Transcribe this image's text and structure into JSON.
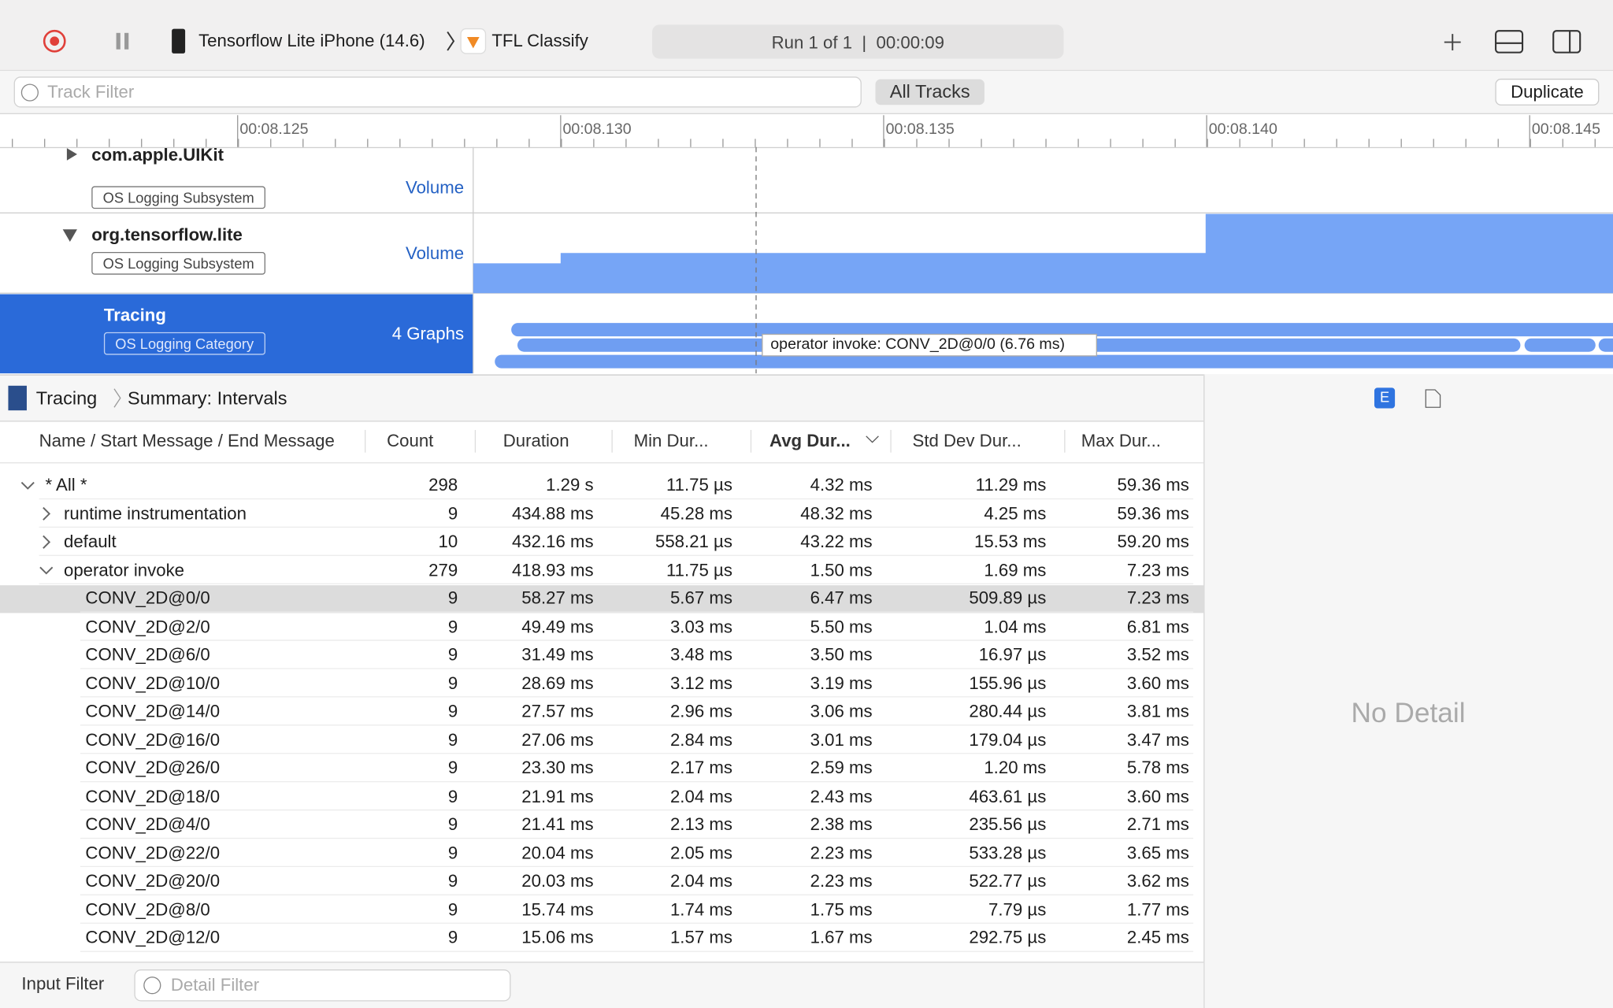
{
  "toolbar": {
    "device": "Tensorflow Lite iPhone (14.6)",
    "app": "TFL Classify",
    "run": "Run 1 of 1  |  00:00:09"
  },
  "filter": {
    "placeholder": "Track Filter",
    "scope": "All Tracks",
    "button": "Duplicate"
  },
  "timeline": {
    "ticks": [
      "00:08.125",
      "00:08.130",
      "00:08.135",
      "00:08.140",
      "00:08.145"
    ]
  },
  "tracks": [
    {
      "name": "com.apple.UIKit",
      "badge": "OS Logging Subsystem",
      "graph": "Volume"
    },
    {
      "name": "org.tensorflow.lite",
      "badge": "OS Logging Subsystem",
      "graph": "Volume"
    },
    {
      "name": "Tracing",
      "badge": "OS Logging Category",
      "graph": "4 Graphs"
    }
  ],
  "tooltip": "operator invoke: CONV_2D@0/0 (6.76 ms)",
  "breadcrumb": [
    "Tracing",
    "Summary: Intervals"
  ],
  "detail": {
    "tab": "E",
    "empty": "No Detail"
  },
  "table": {
    "columns": [
      "Name / Start Message / End Message",
      "Count",
      "Duration",
      "Min Dur...",
      "Avg Dur...",
      "Std Dev Dur...",
      "Max Dur..."
    ],
    "rows": [
      [
        "* All *",
        298,
        "1.29 s",
        "11.75 µs",
        "4.32 ms",
        "11.29 ms",
        "59.36 ms"
      ],
      [
        "runtime instrumentation",
        9,
        "434.88 ms",
        "45.28 ms",
        "48.32 ms",
        "4.25 ms",
        "59.36 ms"
      ],
      [
        "default",
        10,
        "432.16 ms",
        "558.21 µs",
        "43.22 ms",
        "15.53 ms",
        "59.20 ms"
      ],
      [
        "operator invoke",
        279,
        "418.93 ms",
        "11.75 µs",
        "1.50 ms",
        "1.69 ms",
        "7.23 ms"
      ],
      [
        "CONV_2D@0/0",
        9,
        "58.27 ms",
        "5.67 ms",
        "6.47 ms",
        "509.89 µs",
        "7.23 ms"
      ],
      [
        "CONV_2D@2/0",
        9,
        "49.49 ms",
        "3.03 ms",
        "5.50 ms",
        "1.04 ms",
        "6.81 ms"
      ],
      [
        "CONV_2D@6/0",
        9,
        "31.49 ms",
        "3.48 ms",
        "3.50 ms",
        "16.97 µs",
        "3.52 ms"
      ],
      [
        "CONV_2D@10/0",
        9,
        "28.69 ms",
        "3.12 ms",
        "3.19 ms",
        "155.96 µs",
        "3.60 ms"
      ],
      [
        "CONV_2D@14/0",
        9,
        "27.57 ms",
        "2.96 ms",
        "3.06 ms",
        "280.44 µs",
        "3.81 ms"
      ],
      [
        "CONV_2D@16/0",
        9,
        "27.06 ms",
        "2.84 ms",
        "3.01 ms",
        "179.04 µs",
        "3.47 ms"
      ],
      [
        "CONV_2D@26/0",
        9,
        "23.30 ms",
        "2.17 ms",
        "2.59 ms",
        "1.20 ms",
        "5.78 ms"
      ],
      [
        "CONV_2D@18/0",
        9,
        "21.91 ms",
        "2.04 ms",
        "2.43 ms",
        "463.61 µs",
        "3.60 ms"
      ],
      [
        "CONV_2D@4/0",
        9,
        "21.41 ms",
        "2.13 ms",
        "2.38 ms",
        "235.56 µs",
        "2.71 ms"
      ],
      [
        "CONV_2D@22/0",
        9,
        "20.04 ms",
        "2.05 ms",
        "2.23 ms",
        "533.28 µs",
        "3.65 ms"
      ],
      [
        "CONV_2D@20/0",
        9,
        "20.03 ms",
        "2.04 ms",
        "2.23 ms",
        "522.77 µs",
        "3.62 ms"
      ],
      [
        "CONV_2D@8/0",
        9,
        "15.74 ms",
        "1.74 ms",
        "1.75 ms",
        "7.79 µs",
        "1.77 ms"
      ],
      [
        "CONV_2D@12/0",
        9,
        "15.06 ms",
        "1.57 ms",
        "1.67 ms",
        "292.75 µs",
        "2.45 ms"
      ]
    ]
  },
  "footer": {
    "label": "Input Filter",
    "placeholder": "Detail Filter"
  }
}
